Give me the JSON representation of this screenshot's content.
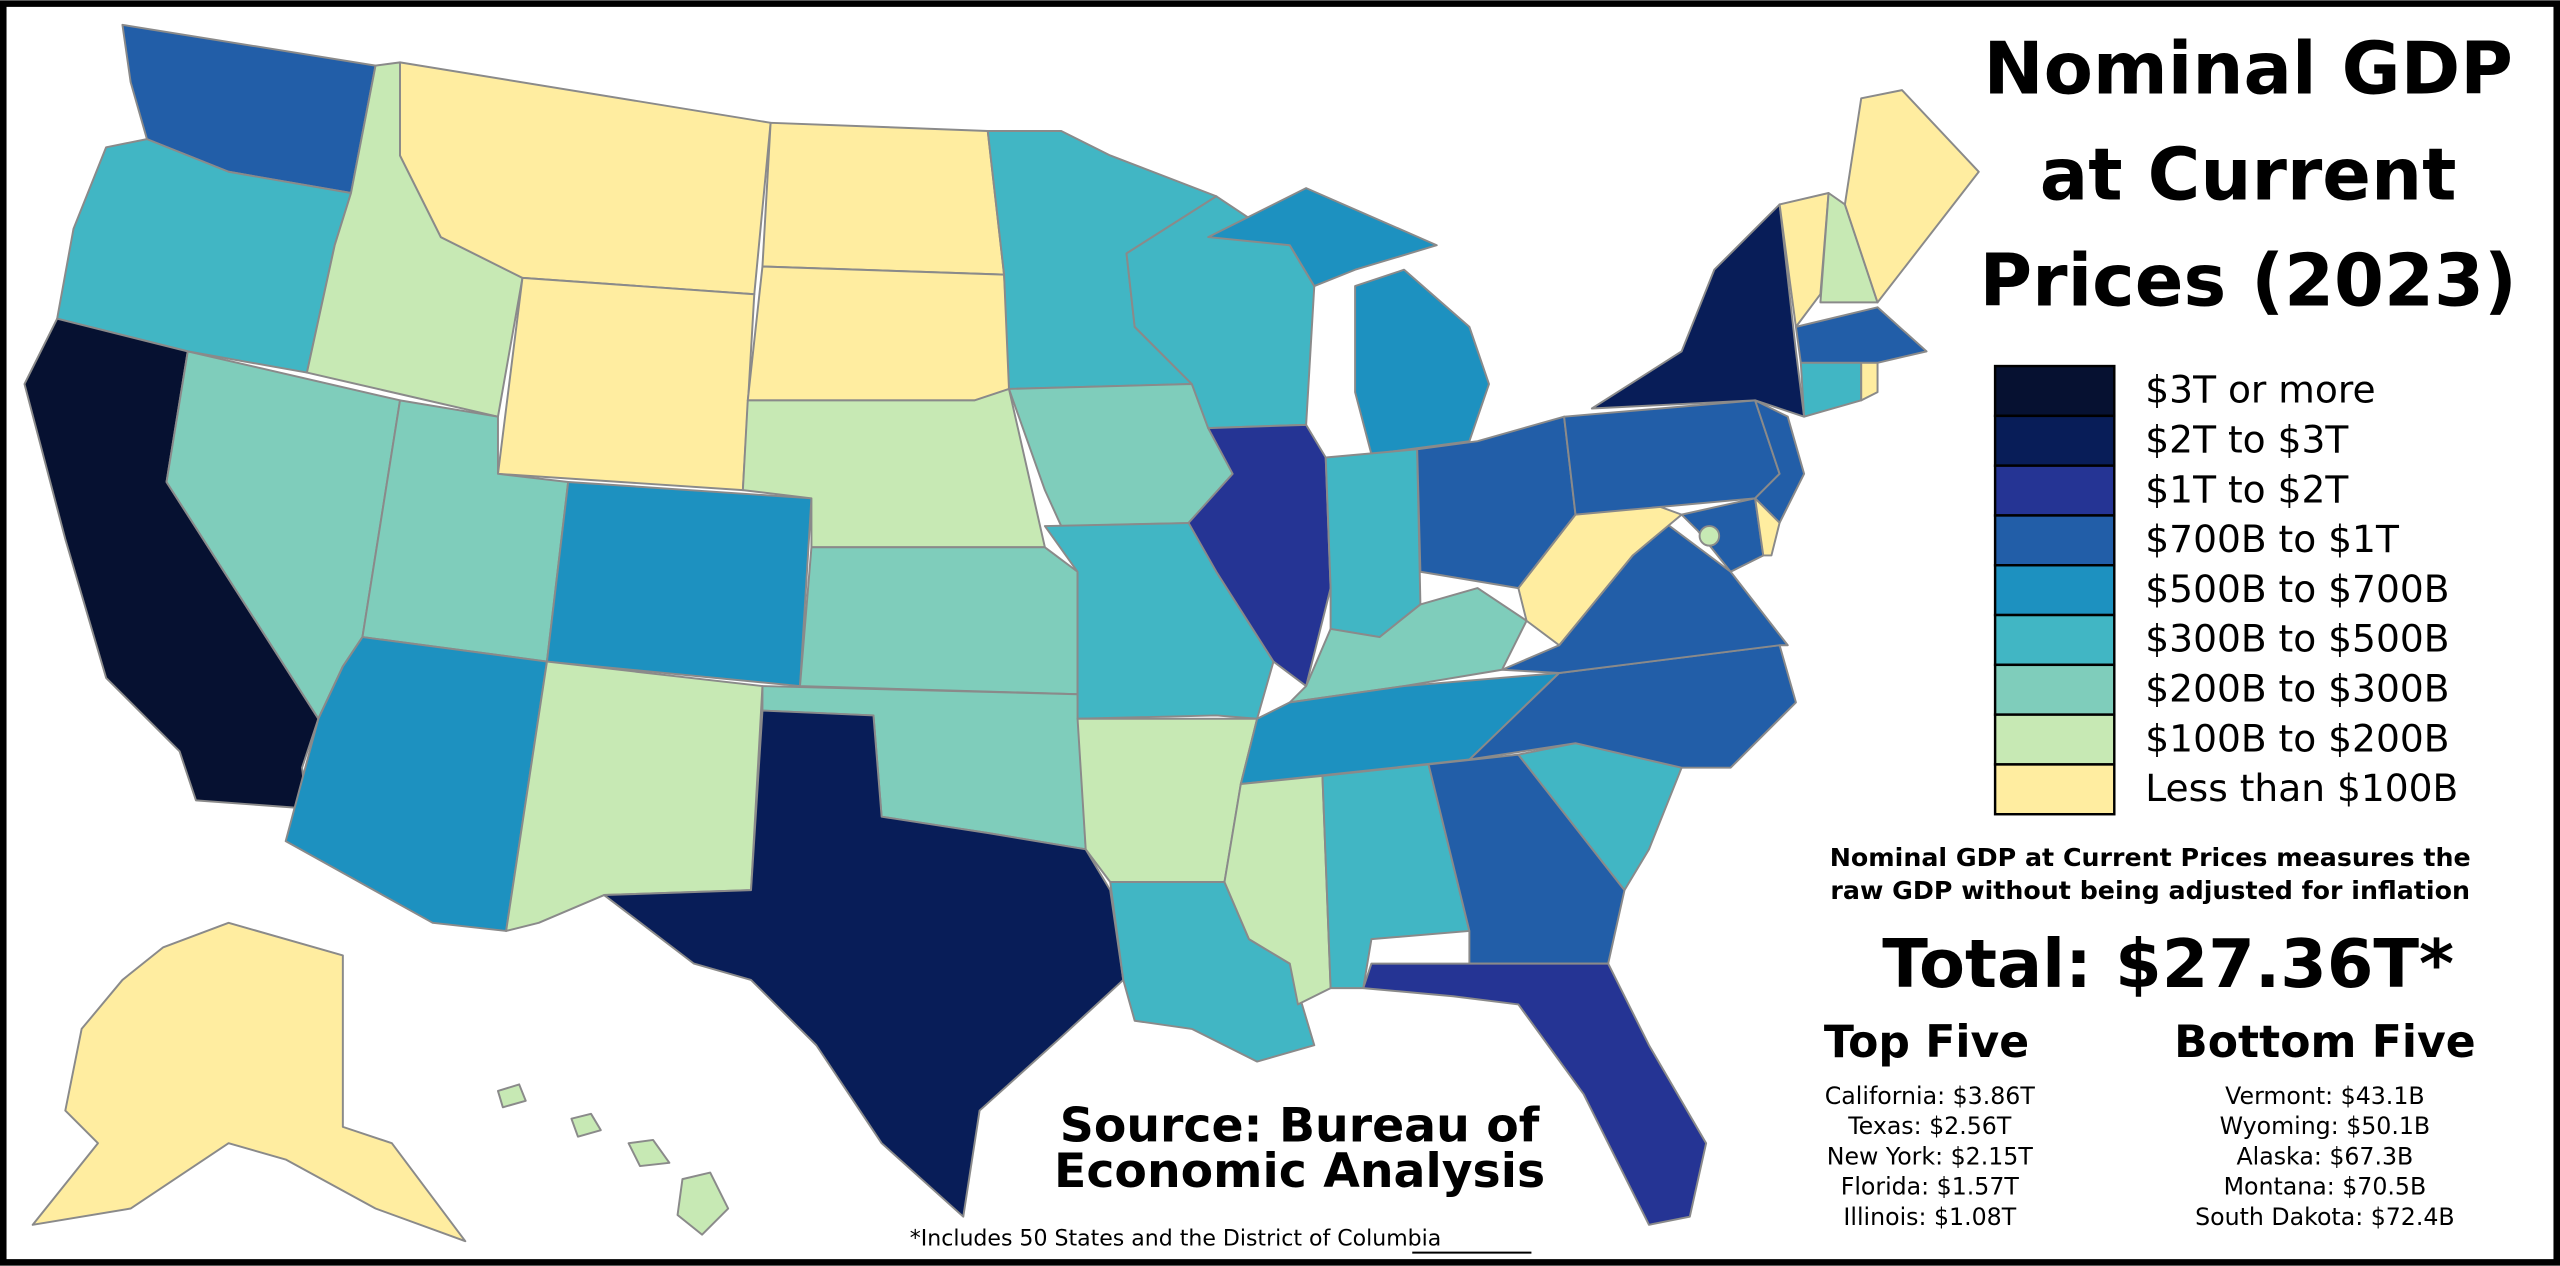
{
  "title_lines": [
    "Nominal GDP",
    "at Current",
    "Prices (2023)"
  ],
  "legend": [
    {
      "label": "$3T or more",
      "color": "#061131"
    },
    {
      "label": "$2T to $3T",
      "color": "#081d58"
    },
    {
      "label": "$1T to $2T",
      "color": "#253494"
    },
    {
      "label": "$700B to $1T",
      "color": "#225ea8"
    },
    {
      "label": "$500B to $700B",
      "color": "#1d91c0"
    },
    {
      "label": "$300B to $500B",
      "color": "#41b6c4"
    },
    {
      "label": "$200B to $300B",
      "color": "#7fcdbb"
    },
    {
      "label": "$100B to $200B",
      "color": "#c7e9b4"
    },
    {
      "label": "Less than $100B",
      "color": "#ffeda0"
    }
  ],
  "description_lines": [
    "Nominal GDP at Current Prices measures the",
    "raw GDP without being adjusted for inflation"
  ],
  "total": "Total: $27.36T*",
  "top_five": {
    "title": "Top Five",
    "items": [
      "California: $3.86T",
      "Texas: $2.56T",
      "New York: $2.15T",
      "Florida: $1.57T",
      "Illinois: $1.08T"
    ]
  },
  "bottom_five": {
    "title": "Bottom Five",
    "items": [
      "Vermont: $43.1B",
      "Wyoming: $50.1B",
      "Alaska: $67.3B",
      "Montana: $70.5B",
      "South Dakota: $72.4B"
    ]
  },
  "source_lines": [
    "Source: Bureau of",
    "Economic Analysis"
  ],
  "footnote": "*Includes 50 States and the District of Columbia"
}
